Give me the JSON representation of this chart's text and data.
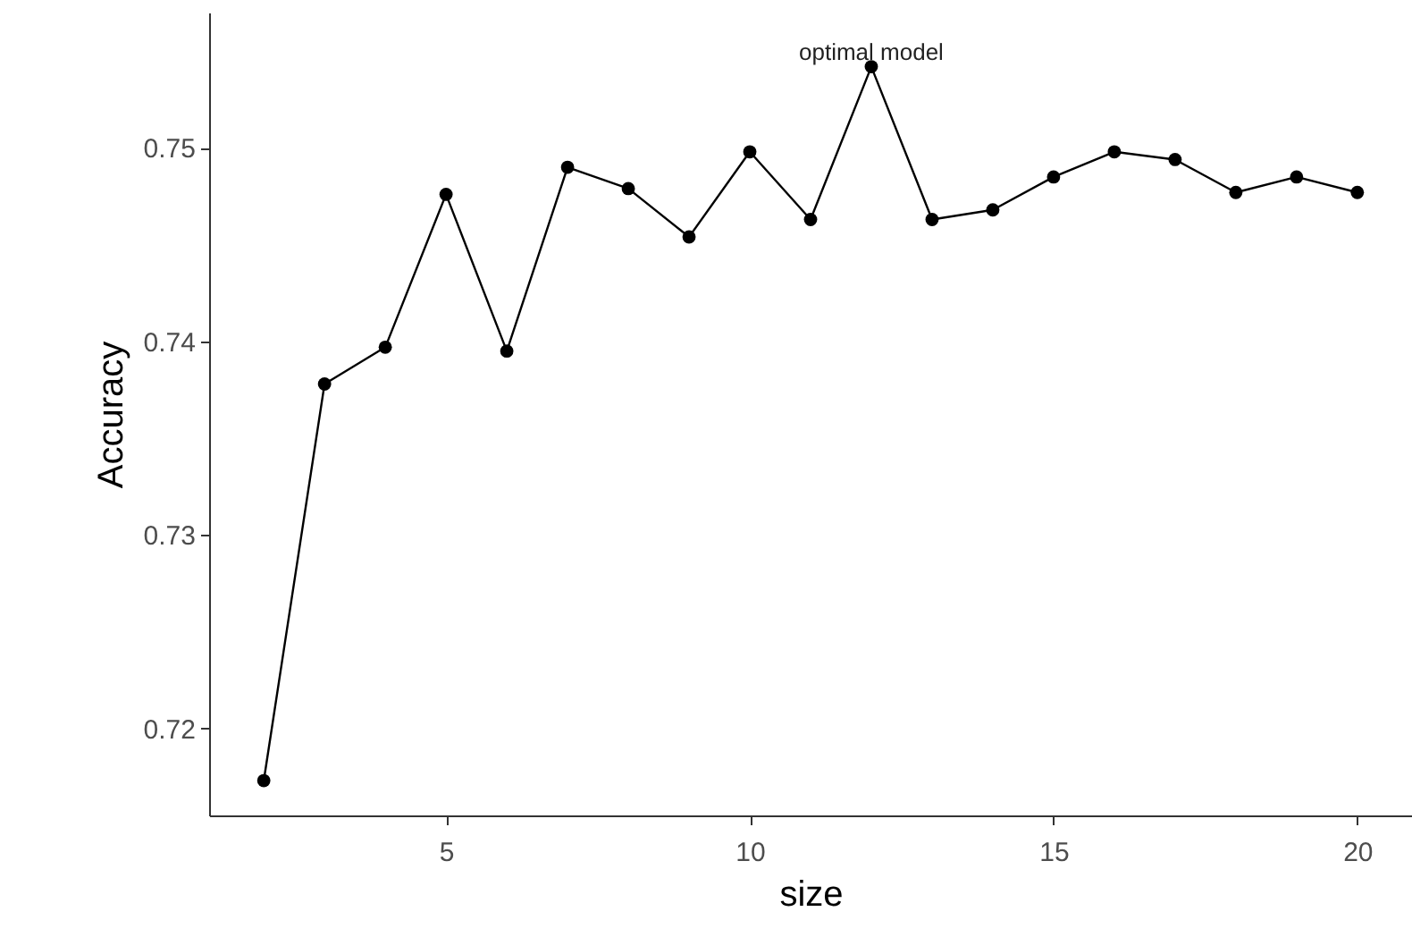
{
  "chart_data": {
    "type": "line",
    "xlabel": "size",
    "ylabel": "Accuracy",
    "x": [
      2,
      3,
      4,
      5,
      6,
      7,
      8,
      9,
      10,
      11,
      12,
      13,
      14,
      15,
      16,
      17,
      18,
      19,
      20
    ],
    "series": [
      {
        "color": "#000000",
        "values": [
          0.7173,
          0.7378,
          0.7397,
          0.7476,
          0.7395,
          0.749,
          0.7479,
          0.7454,
          0.7498,
          0.7463,
          0.7542,
          0.7463,
          0.7468,
          0.7485,
          0.7498,
          0.7494,
          0.7477,
          0.7485,
          0.7477
        ]
      }
    ],
    "xlim": [
      1.1,
      20.9
    ],
    "ylim": [
      0.7155,
      0.757
    ],
    "xticks": [
      5,
      10,
      15,
      20
    ],
    "yticks": [
      0.72,
      0.73,
      0.74,
      0.75
    ],
    "annotations": [
      {
        "text": "optimal model",
        "x": 12,
        "y": 0.7542
      }
    ],
    "marker": "circle",
    "line_style": "solid",
    "grid": false
  }
}
